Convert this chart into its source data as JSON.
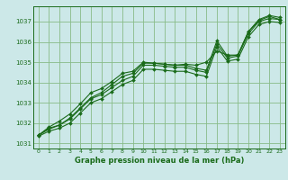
{
  "bg_color": "#cce8e8",
  "grid_color": "#88bb88",
  "line_color": "#1a6b1a",
  "title": "Graphe pression niveau de la mer (hPa)",
  "xlim": [
    -0.5,
    23.5
  ],
  "ylim": [
    1030.75,
    1037.75
  ],
  "yticks": [
    1031,
    1032,
    1033,
    1034,
    1035,
    1036,
    1037
  ],
  "xticks": [
    0,
    1,
    2,
    3,
    4,
    5,
    6,
    7,
    8,
    9,
    10,
    11,
    12,
    13,
    14,
    15,
    16,
    17,
    18,
    19,
    20,
    21,
    22,
    23
  ],
  "series": [
    [
      1031.4,
      1031.7,
      1031.9,
      1032.25,
      1032.75,
      1033.25,
      1033.5,
      1033.9,
      1034.3,
      1034.45,
      1034.95,
      1034.95,
      1034.9,
      1034.85,
      1034.85,
      1034.7,
      1034.6,
      1036.05,
      1035.3,
      1035.35,
      1036.5,
      1037.1,
      1037.3,
      1037.2
    ],
    [
      1031.4,
      1031.8,
      1032.1,
      1032.45,
      1032.95,
      1033.5,
      1033.7,
      1034.05,
      1034.45,
      1034.55,
      1035.0,
      1034.95,
      1034.9,
      1034.85,
      1034.9,
      1034.85,
      1035.0,
      1035.55,
      1035.35,
      1035.35,
      1036.5,
      1037.05,
      1037.25,
      1037.1
    ],
    [
      1031.4,
      1031.75,
      1031.9,
      1032.2,
      1032.7,
      1033.2,
      1033.4,
      1033.75,
      1034.1,
      1034.3,
      1034.85,
      1034.85,
      1034.8,
      1034.75,
      1034.75,
      1034.6,
      1034.5,
      1035.9,
      1035.2,
      1035.3,
      1036.4,
      1037.0,
      1037.15,
      1037.1
    ],
    [
      1031.35,
      1031.6,
      1031.75,
      1032.0,
      1032.5,
      1033.0,
      1033.2,
      1033.55,
      1033.9,
      1034.1,
      1034.65,
      1034.65,
      1034.6,
      1034.55,
      1034.55,
      1034.4,
      1034.3,
      1035.75,
      1035.05,
      1035.15,
      1036.25,
      1036.85,
      1037.0,
      1036.95
    ]
  ]
}
